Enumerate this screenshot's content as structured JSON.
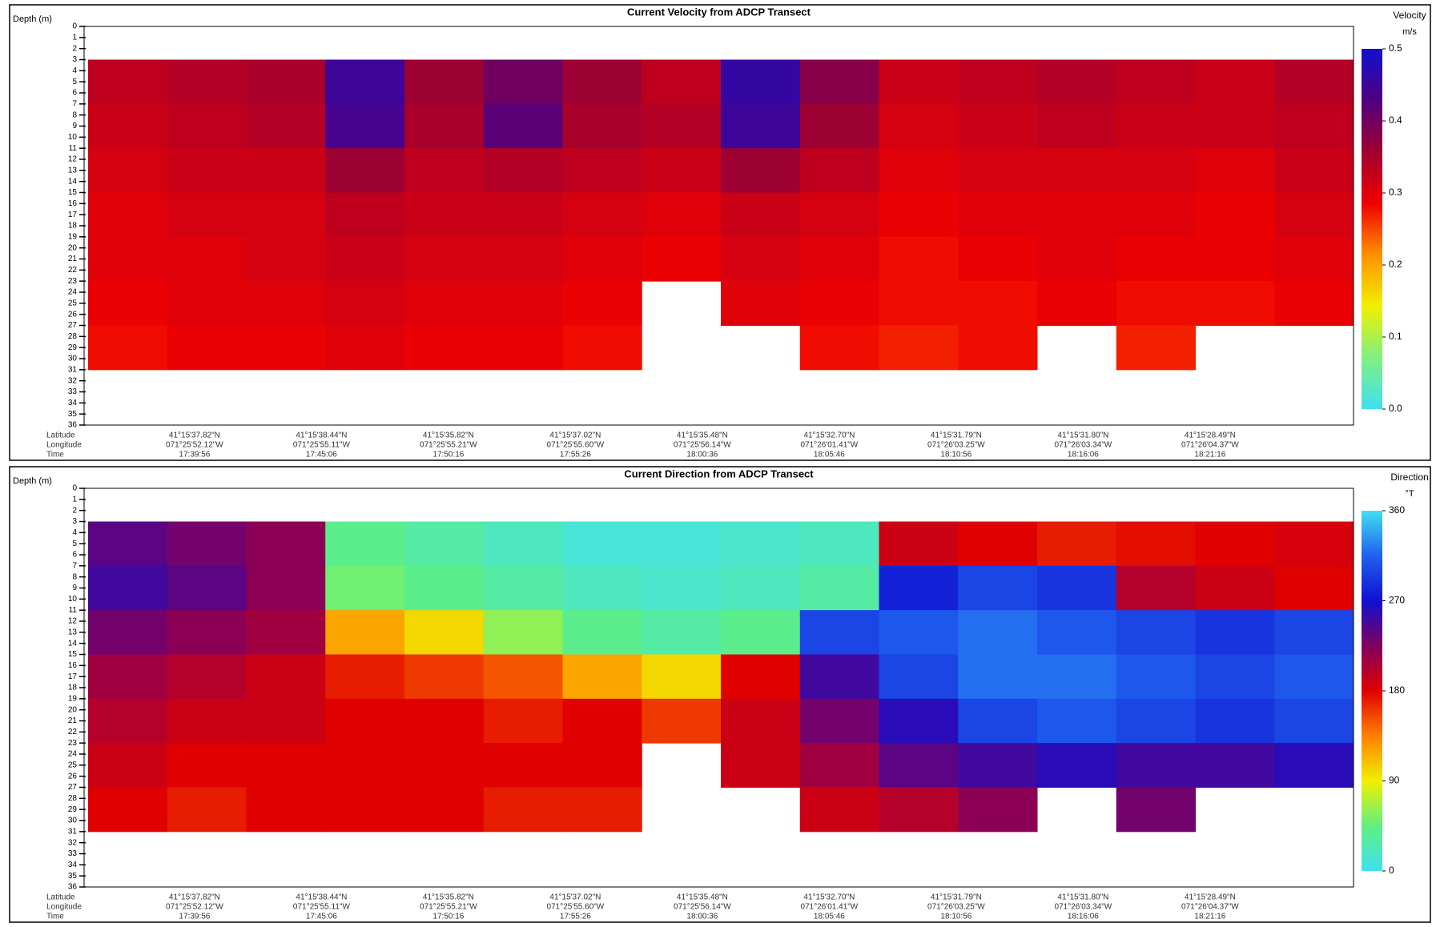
{
  "chart_data": [
    {
      "type": "heatmap",
      "title": "Current Velocity from ADCP Transect",
      "y_label": "Depth (m)",
      "ylim": [
        0,
        36
      ],
      "yticks": [
        0,
        1,
        2,
        3,
        4,
        5,
        6,
        7,
        8,
        9,
        10,
        11,
        12,
        13,
        14,
        15,
        16,
        17,
        18,
        19,
        20,
        21,
        22,
        23,
        24,
        25,
        26,
        27,
        28,
        29,
        30,
        31,
        32,
        33,
        34,
        35,
        36
      ],
      "depth_edges": [
        3,
        7,
        11,
        15,
        19,
        23,
        27,
        31
      ],
      "values": [
        [
          0.33,
          0.34,
          0.35,
          0.45,
          0.36,
          0.4,
          0.36,
          0.33,
          0.46,
          0.38,
          0.32,
          0.33,
          0.34,
          0.33,
          0.32,
          0.34
        ],
        [
          0.32,
          0.33,
          0.34,
          0.44,
          0.35,
          0.42,
          0.35,
          0.34,
          0.45,
          0.36,
          0.31,
          0.32,
          0.33,
          0.32,
          0.32,
          0.33
        ],
        [
          0.31,
          0.32,
          0.32,
          0.36,
          0.33,
          0.34,
          0.33,
          0.32,
          0.36,
          0.33,
          0.3,
          0.31,
          0.31,
          0.31,
          0.3,
          0.32
        ],
        [
          0.3,
          0.31,
          0.31,
          0.33,
          0.32,
          0.32,
          0.31,
          0.3,
          0.32,
          0.31,
          0.29,
          0.3,
          0.3,
          0.3,
          0.29,
          0.31
        ],
        [
          0.3,
          0.3,
          0.31,
          0.32,
          0.31,
          0.31,
          0.3,
          0.29,
          0.31,
          0.3,
          0.28,
          0.29,
          0.3,
          0.29,
          0.29,
          0.3
        ],
        [
          0.29,
          0.3,
          0.3,
          0.31,
          0.3,
          0.3,
          0.29,
          null,
          0.3,
          0.29,
          0.28,
          0.28,
          0.29,
          0.28,
          0.28,
          0.29
        ],
        [
          0.28,
          0.29,
          0.29,
          0.3,
          0.29,
          0.29,
          0.28,
          null,
          null,
          0.28,
          0.27,
          0.28,
          null,
          0.27,
          null,
          null
        ]
      ],
      "colorbar": {
        "title": "Velocity",
        "unit": "m/s",
        "clim": [
          0,
          0.5
        ],
        "ticks": [
          {
            "value": 0,
            "label": "0.0"
          },
          0.1,
          0.2,
          0.3,
          0.4,
          0.5
        ],
        "colors": [
          "#40e0f0",
          "#80f080",
          "#f0f000",
          "#ff9000",
          "#f00000",
          "#a00030",
          "#500080",
          "#1010d0"
        ]
      },
      "position_rows": [
        "Latitude",
        "Longitude",
        "Time"
      ],
      "latitude": [
        "41°15'37.82\"N",
        "41°15'38.44\"N",
        "41°15'35.82\"N",
        "41°15'37.02\"N",
        "41°15'35.48\"N",
        "41°15'32.70\"N",
        "41°15'31.79\"N",
        "41°15'31.80\"N",
        "41°15'28.49\"N"
      ],
      "longitude": [
        "071°25'52.12\"W",
        "071°25'55.11\"W",
        "071°25'55.21\"W",
        "071°25'55.60\"W",
        "071°25'56.14\"W",
        "071°26'01.41\"W",
        "071°26'03.25\"W",
        "071°26'03.34\"W",
        "071°26'04.37\"W"
      ],
      "time": [
        "17:39:56",
        "17:45:06",
        "17:50:16",
        "17:55:26",
        "18:00:36",
        "18:05:46",
        "18:10:56",
        "18:16:06",
        "18:21:16"
      ]
    },
    {
      "type": "heatmap",
      "title": "Current Direction from ADCP Transect",
      "y_label": "Depth (m)",
      "ylim": [
        0,
        36
      ],
      "yticks": [
        0,
        1,
        2,
        3,
        4,
        5,
        6,
        7,
        8,
        9,
        10,
        11,
        12,
        13,
        14,
        15,
        16,
        17,
        18,
        19,
        20,
        21,
        22,
        23,
        24,
        25,
        26,
        27,
        28,
        29,
        30,
        31,
        32,
        33,
        34,
        35,
        36
      ],
      "depth_edges": [
        3,
        7,
        11,
        15,
        19,
        23,
        27,
        31
      ],
      "values": [
        [
          240,
          230,
          220,
          40,
          30,
          20,
          10,
          10,
          15,
          20,
          190,
          180,
          170,
          175,
          180,
          185
        ],
        [
          250,
          240,
          220,
          50,
          40,
          30,
          20,
          15,
          20,
          30,
          280,
          300,
          290,
          200,
          190,
          180
        ],
        [
          230,
          220,
          210,
          120,
          100,
          60,
          40,
          30,
          40,
          300,
          310,
          320,
          310,
          300,
          290,
          300
        ],
        [
          210,
          200,
          190,
          170,
          160,
          150,
          120,
          100,
          180,
          250,
          300,
          320,
          320,
          310,
          300,
          310
        ],
        [
          200,
          190,
          190,
          180,
          180,
          170,
          180,
          160,
          190,
          230,
          260,
          300,
          310,
          300,
          290,
          300
        ],
        [
          190,
          180,
          180,
          180,
          180,
          180,
          180,
          null,
          190,
          210,
          240,
          250,
          260,
          250,
          250,
          260
        ],
        [
          180,
          170,
          180,
          180,
          180,
          170,
          170,
          null,
          null,
          190,
          200,
          220,
          null,
          230,
          null,
          null
        ]
      ],
      "colorbar": {
        "title": "Direction",
        "unit": "°T",
        "clim": [
          0,
          360
        ],
        "ticks": [
          0,
          90,
          180,
          270,
          360
        ],
        "colors": [
          "#40e0f0",
          "#60f080",
          "#f0f000",
          "#ff8000",
          "#e00000",
          "#800060",
          "#1010d0",
          "#2060f0",
          "#40e0f0"
        ]
      },
      "position_rows": [
        "Latitude",
        "Longitude",
        "Time"
      ],
      "latitude": [
        "41°15'37.82\"N",
        "41°15'38.44\"N",
        "41°15'35.82\"N",
        "41°15'37.02\"N",
        "41°15'35.48\"N",
        "41°15'32.70\"N",
        "41°15'31.79\"N",
        "41°15'31.80\"N",
        "41°15'28.49\"N"
      ],
      "longitude": [
        "071°25'52.12\"W",
        "071°25'55.11\"W",
        "071°25'55.21\"W",
        "071°25'55.60\"W",
        "071°25'56.14\"W",
        "071°26'01.41\"W",
        "071°26'03.25\"W",
        "071°26'03.34\"W",
        "071°26'04.37\"W"
      ],
      "time": [
        "17:39:56",
        "17:45:06",
        "17:50:16",
        "17:55:26",
        "18:00:36",
        "18:05:46",
        "18:10:56",
        "18:16:06",
        "18:21:16"
      ]
    }
  ]
}
